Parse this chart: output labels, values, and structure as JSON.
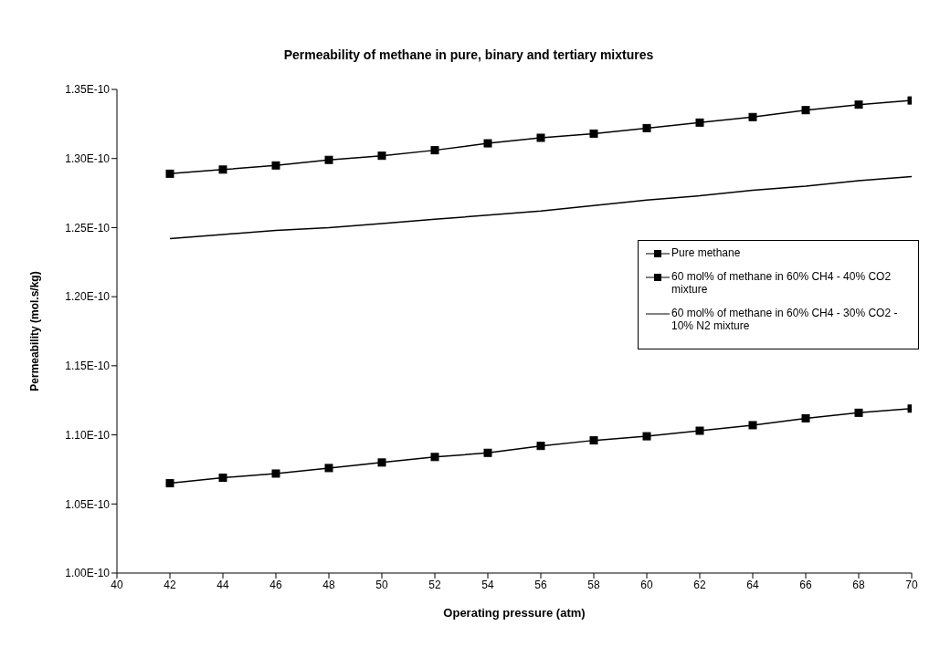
{
  "chart_data": {
    "type": "line",
    "title": "Permeability of methane in pure, binary and tertiary mixtures",
    "xlabel": "Operating pressure (atm)",
    "ylabel": "Permeability (mol.s/kg)",
    "x": [
      42,
      44,
      46,
      48,
      50,
      52,
      54,
      56,
      58,
      60,
      62,
      64,
      66,
      68,
      70
    ],
    "series": [
      {
        "name": "Pure methane",
        "color": "#000000",
        "marker": "square",
        "values": [
          1.065e-10,
          1.069e-10,
          1.072e-10,
          1.076e-10,
          1.08e-10,
          1.084e-10,
          1.087e-10,
          1.092e-10,
          1.096e-10,
          1.099e-10,
          1.103e-10,
          1.107e-10,
          1.112e-10,
          1.116e-10,
          1.119e-10
        ]
      },
      {
        "name": "60 mol% of methane in 60% CH4 - 40% CO2 mixture",
        "color": "#000000",
        "marker": "square",
        "values": [
          1.289e-10,
          1.292e-10,
          1.295e-10,
          1.299e-10,
          1.302e-10,
          1.306e-10,
          1.311e-10,
          1.315e-10,
          1.318e-10,
          1.322e-10,
          1.326e-10,
          1.33e-10,
          1.335e-10,
          1.339e-10,
          1.342e-10
        ]
      },
      {
        "name": "60 mol% of methane in 60% CH4 - 30% CO2 - 10% N2 mixture",
        "color": "#000000",
        "marker": "none",
        "values": [
          1.242e-10,
          1.245e-10,
          1.248e-10,
          1.25e-10,
          1.253e-10,
          1.256e-10,
          1.259e-10,
          1.262e-10,
          1.266e-10,
          1.27e-10,
          1.273e-10,
          1.277e-10,
          1.28e-10,
          1.284e-10,
          1.287e-10
        ]
      }
    ],
    "xlim": [
      40,
      70
    ],
    "xticks": [
      40,
      42,
      44,
      46,
      48,
      50,
      52,
      54,
      56,
      58,
      60,
      62,
      64,
      66,
      68,
      70
    ],
    "ylim": [
      1e-10,
      1.35e-10
    ],
    "yticks": [
      {
        "value": 1e-10,
        "label": "1.00E-10"
      },
      {
        "value": 1.05e-10,
        "label": "1.05E-10"
      },
      {
        "value": 1.1e-10,
        "label": "1.10E-10"
      },
      {
        "value": 1.15e-10,
        "label": "1.15E-10"
      },
      {
        "value": 1.2e-10,
        "label": "1.20E-10"
      },
      {
        "value": 1.25e-10,
        "label": "1.25E-10"
      },
      {
        "value": 1.3e-10,
        "label": "1.30E-10"
      },
      {
        "value": 1.35e-10,
        "label": "1.35E-10"
      }
    ],
    "grid": false,
    "legend": "right",
    "line_style": "solid"
  }
}
